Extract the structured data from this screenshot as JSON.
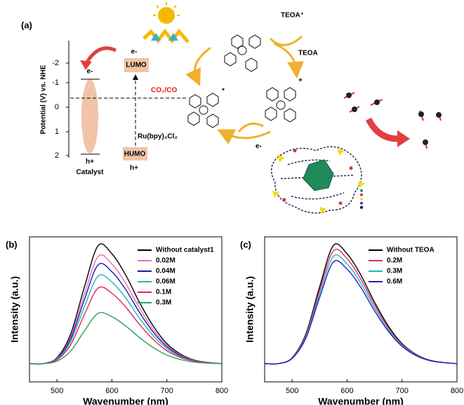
{
  "diagram": {
    "label": "(a)",
    "axis_label": "Potential (V) vs. NHE",
    "ticks": [
      -2,
      -1,
      0,
      1,
      2
    ],
    "catalyst_e": "e-",
    "catalyst_h": "h+",
    "catalyst": "Catalyst",
    "lumo_e": "e-",
    "lumo": "LUMO",
    "humo": "HUMO",
    "humo_h": "h+",
    "photosensitizer": "Ru(bpy)₃Cl₂",
    "redox": "CO₂/CO",
    "teoa_plus": "TEOA⁺",
    "teoa": "TEOA",
    "cycle_e": "e-",
    "excited": "*",
    "oxidized": "+"
  },
  "chart_data": [
    {
      "type": "line",
      "label": "(b)",
      "x_label": "Wavenumber (nm)",
      "y_label": "Intensity (a.u.)",
      "x": [
        450,
        475,
        500,
        525,
        550,
        575,
        600,
        625,
        650,
        675,
        700,
        725,
        750,
        775,
        800
      ],
      "xlim": [
        450,
        800
      ],
      "xticks": [
        500,
        600,
        700,
        800
      ],
      "ylim": [
        0,
        1
      ],
      "series": [
        {
          "name": "Without catalyst1",
          "color": "#000000",
          "values": [
            0.126,
            0.126,
            0.167,
            0.33,
            0.655,
            0.94,
            0.883,
            0.737,
            0.549,
            0.386,
            0.264,
            0.191,
            0.15,
            0.134,
            0.126
          ]
        },
        {
          "name": "0.02M",
          "color": "#f06ab0",
          "values": [
            0.126,
            0.126,
            0.163,
            0.311,
            0.606,
            0.865,
            0.813,
            0.68,
            0.51,
            0.362,
            0.252,
            0.185,
            0.148,
            0.133,
            0.126
          ]
        },
        {
          "name": "0.04M",
          "color": "#1a1aa8",
          "values": [
            0.126,
            0.126,
            0.16,
            0.296,
            0.569,
            0.807,
            0.759,
            0.637,
            0.48,
            0.344,
            0.242,
            0.18,
            0.146,
            0.133,
            0.126
          ]
        },
        {
          "name": "0.06M",
          "color": "#20b8b8",
          "values": [
            0.126,
            0.126,
            0.156,
            0.277,
            0.519,
            0.73,
            0.688,
            0.579,
            0.44,
            0.319,
            0.229,
            0.174,
            0.144,
            0.132,
            0.126
          ]
        },
        {
          "name": "0.1M",
          "color": "#e8245a",
          "values": [
            0.126,
            0.126,
            0.152,
            0.256,
            0.465,
            0.647,
            0.611,
            0.517,
            0.397,
            0.293,
            0.215,
            0.168,
            0.142,
            0.131,
            0.126
          ]
        },
        {
          "name": "0.3M",
          "color": "#2ca05a",
          "values": [
            0.126,
            0.126,
            0.143,
            0.213,
            0.352,
            0.473,
            0.449,
            0.386,
            0.306,
            0.237,
            0.185,
            0.154,
            0.136,
            0.129,
            0.126
          ]
        }
      ]
    },
    {
      "type": "line",
      "label": "(c)",
      "x_label": "Wavenumber (nm)",
      "y_label": "Intensity (a.u.)",
      "x": [
        450,
        475,
        500,
        525,
        550,
        575,
        600,
        625,
        650,
        675,
        700,
        725,
        750,
        775,
        800
      ],
      "xlim": [
        450,
        800
      ],
      "xticks": [
        500,
        600,
        700,
        800
      ],
      "ylim": [
        0,
        1
      ],
      "series": [
        {
          "name": "Without TEOA",
          "color": "#000000",
          "values": [
            0.126,
            0.126,
            0.167,
            0.33,
            0.655,
            0.94,
            0.883,
            0.737,
            0.549,
            0.386,
            0.264,
            0.191,
            0.15,
            0.134,
            0.126
          ]
        },
        {
          "name": "0.2M",
          "color": "#e8246e",
          "values": [
            0.126,
            0.126,
            0.165,
            0.32,
            0.631,
            0.903,
            0.849,
            0.709,
            0.53,
            0.375,
            0.258,
            0.188,
            0.149,
            0.134,
            0.126
          ]
        },
        {
          "name": "0.3M",
          "color": "#1fb8b0",
          "values": [
            0.126,
            0.126,
            0.163,
            0.311,
            0.606,
            0.865,
            0.813,
            0.68,
            0.51,
            0.362,
            0.252,
            0.185,
            0.148,
            0.133,
            0.126
          ]
        },
        {
          "name": "0.6M",
          "color": "#2020c0",
          "values": [
            0.126,
            0.126,
            0.161,
            0.301,
            0.581,
            0.826,
            0.777,
            0.651,
            0.49,
            0.35,
            0.245,
            0.182,
            0.147,
            0.133,
            0.126
          ]
        }
      ]
    }
  ]
}
